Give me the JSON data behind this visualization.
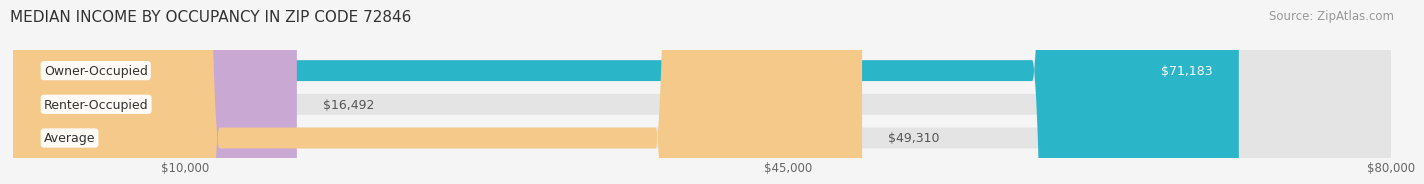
{
  "title": "MEDIAN INCOME BY OCCUPANCY IN ZIP CODE 72846",
  "source": "Source: ZipAtlas.com",
  "categories": [
    "Owner-Occupied",
    "Renter-Occupied",
    "Average"
  ],
  "values": [
    71183,
    16492,
    49310
  ],
  "bar_colors": [
    "#2bb5c8",
    "#c9a8d4",
    "#f5c98a"
  ],
  "bar_labels": [
    "$71,183",
    "$16,492",
    "$49,310"
  ],
  "label_inside": [
    true,
    false,
    false
  ],
  "xmin": 0,
  "xmax": 80000,
  "xticks": [
    10000,
    45000,
    80000
  ],
  "xticklabels": [
    "$10,000",
    "$45,000",
    "$80,000"
  ],
  "background_color": "#f5f5f5",
  "bar_bg_color": "#e4e4e4",
  "title_fontsize": 11,
  "source_fontsize": 8.5,
  "label_fontsize": 9,
  "category_fontsize": 9
}
